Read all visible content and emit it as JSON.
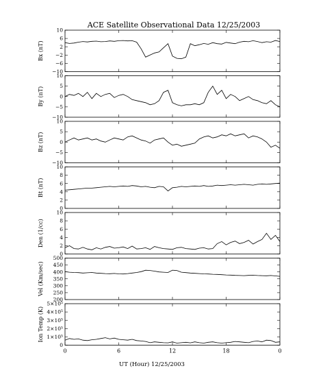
{
  "chart_data": {
    "type": "line",
    "title": "ACE Satellite Observational Data   12/25/2003",
    "xlabel": "UT (Hour)  12/25/2003",
    "x_ticks": [
      "0",
      "6",
      "12",
      "18",
      "0"
    ],
    "x_tick_values": [
      0,
      6,
      12,
      18,
      24
    ],
    "xlim": [
      0,
      24
    ],
    "panels": [
      {
        "ylabel": "Bx (nT)",
        "ylim": [
          -10,
          10
        ],
        "y_ticks": [
          -10,
          -6,
          -2,
          2,
          6,
          10
        ],
        "y_tick_labels": [
          "−10",
          "−6",
          "−2",
          "2",
          "6",
          "10"
        ],
        "series": [
          {
            "x": [
              0,
              0.5,
              1,
              1.5,
              2,
              2.5,
              3,
              3.5,
              4,
              4.5,
              5,
              5.5,
              6,
              6.5,
              7,
              7.5,
              8,
              8.5,
              9,
              9.5,
              10,
              10.5,
              11,
              11.5,
              12,
              12.5,
              13,
              13.5,
              14,
              14.5,
              15,
              15.5,
              16,
              16.5,
              17,
              17.5,
              18,
              18.5,
              19,
              19.5,
              20,
              20.5,
              21,
              21.5,
              22,
              22.5,
              23,
              23.5,
              24
            ],
            "y": [
              4,
              3.6,
              3.8,
              4.2,
              4.5,
              4.3,
              4.6,
              4.7,
              4.4,
              4.5,
              4.8,
              4.6,
              4.9,
              5,
              4.8,
              4.9,
              4.2,
              1,
              -3,
              -2,
              -1,
              -0.5,
              1.5,
              3.5,
              -2.5,
              -3.6,
              -3.8,
              -3,
              3.5,
              2.5,
              3,
              3.6,
              3.2,
              4,
              3.5,
              3.3,
              4.1,
              3.8,
              3.5,
              4.2,
              4.6,
              4.4,
              4.9,
              4.5,
              4,
              4.4,
              4.2,
              5,
              4.5
            ]
          }
        ]
      },
      {
        "ylabel": "By (nT)",
        "ylim": [
          -10,
          10
        ],
        "y_ticks": [
          -10,
          -5,
          0,
          5,
          10
        ],
        "y_tick_labels": [
          "−10",
          "−5",
          "0",
          "5",
          "10"
        ],
        "series": [
          {
            "x": [
              0,
              0.5,
              1,
              1.5,
              2,
              2.5,
              3,
              3.5,
              4,
              4.5,
              5,
              5.5,
              6,
              6.5,
              7,
              7.5,
              8,
              8.5,
              9,
              9.5,
              10,
              10.5,
              11,
              11.5,
              12,
              12.5,
              13,
              13.5,
              14,
              14.5,
              15,
              15.5,
              16,
              16.5,
              17,
              17.5,
              18,
              18.5,
              19,
              19.5,
              20,
              20.5,
              21,
              21.5,
              22,
              22.5,
              23,
              23.5,
              24
            ],
            "y": [
              0,
              1,
              0.5,
              1.5,
              0,
              2,
              -1,
              1.5,
              0,
              1,
              1.5,
              -0.5,
              0.5,
              1,
              0,
              -1.5,
              -2,
              -2.5,
              -3,
              -4,
              -3.5,
              -2,
              2,
              3,
              -3,
              -4,
              -4.5,
              -4,
              -4,
              -3.5,
              -4,
              -3,
              2,
              5,
              1,
              3,
              -1,
              1,
              0,
              -2,
              -1,
              0,
              -1.5,
              -2,
              -3,
              -3.5,
              -2,
              -4,
              -5
            ]
          }
        ]
      },
      {
        "ylabel": "Bz (nT)",
        "ylim": [
          -10,
          10
        ],
        "y_ticks": [
          -10,
          -5,
          0,
          5,
          10
        ],
        "y_tick_labels": [
          "−10",
          "−5",
          "0",
          "5",
          "10"
        ],
        "series": [
          {
            "x": [
              0,
              0.5,
              1,
              1.5,
              2,
              2.5,
              3,
              3.5,
              4,
              4.5,
              5,
              5.5,
              6,
              6.5,
              7,
              7.5,
              8,
              8.5,
              9,
              9.5,
              10,
              10.5,
              11,
              11.5,
              12,
              12.5,
              13,
              13.5,
              14,
              14.5,
              15,
              15.5,
              16,
              16.5,
              17,
              17.5,
              18,
              18.5,
              19,
              19.5,
              20,
              20.5,
              21,
              21.5,
              22,
              22.5,
              23,
              23.5,
              24
            ],
            "y": [
              0,
              1,
              2,
              1,
              1.5,
              2,
              1,
              1.5,
              0.5,
              0,
              1,
              2,
              1.5,
              1,
              2.5,
              3,
              2,
              1,
              0.5,
              -0.5,
              1,
              1.5,
              2,
              0,
              -1.5,
              -1,
              -2,
              -1.5,
              -1,
              -0.5,
              1.5,
              2.5,
              3,
              2,
              2.5,
              3.5,
              3,
              4,
              3,
              3.5,
              4,
              2,
              3,
              2.5,
              1.5,
              0,
              -2.5,
              -1.5,
              -3
            ]
          }
        ]
      },
      {
        "ylabel": "Bt (nT)",
        "ylim": [
          0,
          10
        ],
        "y_ticks": [
          0,
          2,
          4,
          6,
          8,
          10
        ],
        "y_tick_labels": [
          "0",
          "2",
          "4",
          "6",
          "8",
          "10"
        ],
        "series": [
          {
            "x": [
              0,
              0.5,
              1,
              1.5,
              2,
              2.5,
              3,
              3.5,
              4,
              4.5,
              5,
              5.5,
              6,
              6.5,
              7,
              7.5,
              8,
              8.5,
              9,
              9.5,
              10,
              10.5,
              11,
              11.5,
              12,
              12.5,
              13,
              13.5,
              14,
              14.5,
              15,
              15.5,
              16,
              16.5,
              17,
              17.5,
              18,
              18.5,
              19,
              19.5,
              20,
              20.5,
              21,
              21.5,
              22,
              22.5,
              23,
              23.5,
              24
            ],
            "y": [
              4.4,
              4.5,
              4.6,
              4.7,
              4.8,
              4.9,
              4.9,
              5,
              5.1,
              5.2,
              5.3,
              5.2,
              5.3,
              5.4,
              5.3,
              5.5,
              5.4,
              5.2,
              5.3,
              5.1,
              5,
              5.3,
              5.2,
              4.2,
              5,
              5.1,
              5.3,
              5.2,
              5.3,
              5.4,
              5.3,
              5.5,
              5.3,
              5.4,
              5.6,
              5.5,
              5.6,
              5.7,
              5.6,
              5.7,
              5.8,
              5.7,
              5.6,
              5.8,
              5.9,
              5.8,
              5.9,
              6,
              6.1
            ]
          }
        ]
      },
      {
        "ylabel": "Den (1/cc)",
        "ylim": [
          0,
          10
        ],
        "y_ticks": [
          0,
          2,
          4,
          6,
          8,
          10
        ],
        "y_tick_labels": [
          "0",
          "2",
          "4",
          "6",
          "8",
          "10"
        ],
        "series": [
          {
            "x": [
              0,
              0.5,
              1,
              1.5,
              2,
              2.5,
              3,
              3.5,
              4,
              4.5,
              5,
              5.5,
              6,
              6.5,
              7,
              7.5,
              8,
              8.5,
              9,
              9.5,
              10,
              10.5,
              11,
              11.5,
              12,
              12.5,
              13,
              13.5,
              14,
              14.5,
              15,
              15.5,
              16,
              16.5,
              17,
              17.5,
              18,
              18.5,
              19,
              19.5,
              20,
              20.5,
              21,
              21.5,
              22,
              22.5,
              23,
              23.5,
              24
            ],
            "y": [
              1.5,
              2,
              1.3,
              1.2,
              1.6,
              1.2,
              1,
              1.5,
              1.2,
              1.6,
              1.8,
              1.4,
              1.5,
              1.7,
              1.3,
              1.9,
              1.2,
              1.3,
              1.5,
              1.1,
              1.8,
              1.5,
              1.3,
              1.2,
              1.1,
              1.5,
              1.6,
              1.3,
              1.2,
              1.1,
              1.4,
              1.5,
              1.2,
              1.3,
              2.5,
              3,
              2.2,
              2.8,
              3.1,
              2.5,
              2.8,
              3.3,
              2.4,
              3,
              3.5,
              5,
              3.5,
              4.5,
              3
            ]
          }
        ]
      },
      {
        "ylabel": "Vel (Km/sec)",
        "ylim": [
          200,
          500
        ],
        "y_ticks": [
          200,
          250,
          300,
          350,
          400,
          450,
          500
        ],
        "y_tick_labels": [
          "200",
          "250",
          "300",
          "350",
          "400",
          "450",
          "500"
        ],
        "series": [
          {
            "x": [
              0,
              0.5,
              1,
              1.5,
              2,
              2.5,
              3,
              3.5,
              4,
              4.5,
              5,
              5.5,
              6,
              6.5,
              7,
              7.5,
              8,
              8.5,
              9,
              9.5,
              10,
              10.5,
              11,
              11.5,
              12,
              12.5,
              13,
              13.5,
              14,
              14.5,
              15,
              15.5,
              16,
              16.5,
              17,
              17.5,
              18,
              18.5,
              19,
              19.5,
              20,
              20.5,
              21,
              21.5,
              22,
              22.5,
              23,
              23.5,
              24
            ],
            "y": [
              402,
              398,
              396,
              395,
              392,
              394,
              396,
              392,
              390,
              388,
              387,
              389,
              386,
              385,
              388,
              392,
              396,
              402,
              412,
              410,
              406,
              400,
              398,
              396,
              412,
              410,
              398,
              395,
              392,
              390,
              388,
              386,
              385,
              383,
              382,
              380,
              378,
              377,
              375,
              374,
              373,
              375,
              376,
              374,
              373,
              372,
              374,
              371,
              368
            ]
          }
        ]
      },
      {
        "ylabel": "Ion Temp (K)",
        "ylim": [
          0,
          500000
        ],
        "y_ticks": [
          0,
          100000,
          200000,
          300000,
          400000,
          500000
        ],
        "y_tick_labels": [
          "0",
          "1×10⁵",
          "2×10⁵",
          "3×10⁵",
          "4×10⁵",
          "5×10⁵"
        ],
        "series": [
          {
            "x": [
              0,
              0.5,
              1,
              1.5,
              2,
              2.5,
              3,
              3.5,
              4,
              4.5,
              5,
              5.5,
              6,
              6.5,
              7,
              7.5,
              8,
              8.5,
              9,
              9.5,
              10,
              10.5,
              11,
              11.5,
              12,
              12.5,
              13,
              13.5,
              14,
              14.5,
              15,
              15.5,
              16,
              16.5,
              17,
              17.5,
              18,
              18.5,
              19,
              19.5,
              20,
              20.5,
              21,
              21.5,
              22,
              22.5,
              23,
              23.5,
              24
            ],
            "y": [
              60000,
              80000,
              70000,
              75000,
              60000,
              55000,
              65000,
              70000,
              80000,
              90000,
              75000,
              85000,
              70000,
              65000,
              60000,
              70000,
              55000,
              50000,
              45000,
              30000,
              40000,
              35000,
              30000,
              28000,
              40000,
              25000,
              30000,
              35000,
              28000,
              40000,
              30000,
              25000,
              35000,
              40000,
              30000,
              25000,
              30000,
              35000,
              45000,
              40000,
              35000,
              30000,
              45000,
              50000,
              40000,
              60000,
              55000,
              35000,
              40000
            ]
          }
        ]
      }
    ]
  }
}
